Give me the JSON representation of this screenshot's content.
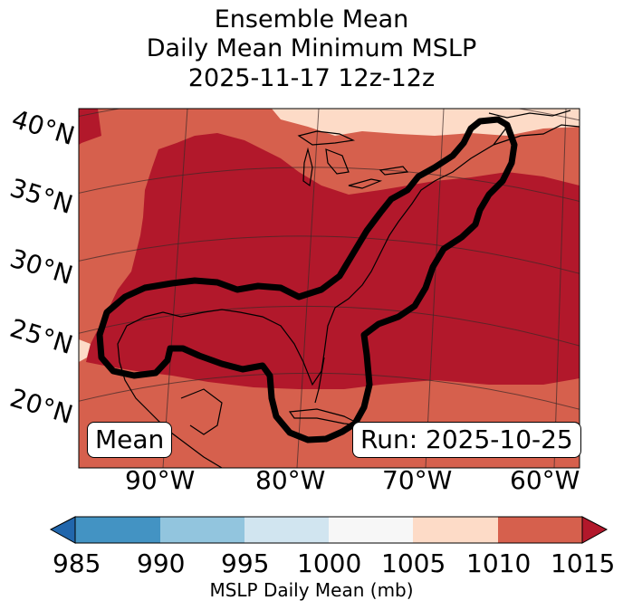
{
  "title": {
    "line1": "Ensemble Mean",
    "line2": "Daily Mean Minimum MSLP",
    "line3": "2025-11-17 12z-12z"
  },
  "map": {
    "lat_labels": [
      "40°N",
      "35°N",
      "30°N",
      "25°N",
      "20°N"
    ],
    "lon_labels": [
      "90°W",
      "80°W",
      "70°W",
      "60°W"
    ],
    "mean_box": "Mean",
    "run_box": "Run: 2025-10-25"
  },
  "colorbar": {
    "ticks": [
      "985",
      "990",
      "995",
      "1000",
      "1005",
      "1010",
      "1015"
    ],
    "colors": {
      "under": "#2166ac",
      "c985_990": "#4393c3",
      "c990_995": "#92c5de",
      "c995_1000": "#d1e5f0",
      "c1000_1005": "#f7f7f7",
      "c1005_1010": "#fddbc7",
      "c1010_1015": "#d6604d",
      "over": "#b2182b"
    },
    "label": "MSLP Daily Mean (mb)"
  }
}
